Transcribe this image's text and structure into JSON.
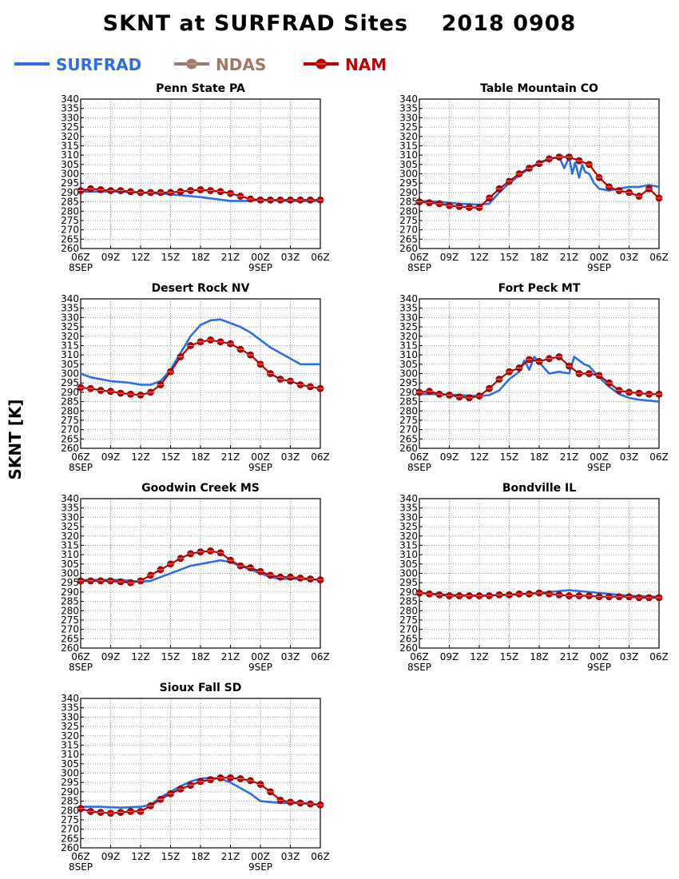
{
  "figure": {
    "title": "SKNT at SURFRAD Sites    2018 0908",
    "ylabel": "SKNT [K]"
  },
  "legend": [
    {
      "name": "SURFRAD",
      "color": "#2b6fe0",
      "marker": "none"
    },
    {
      "name": "NDAS",
      "color": "#a0786a",
      "marker": "circle"
    },
    {
      "name": "NAM",
      "color": "#c00000",
      "marker": "circle"
    }
  ],
  "chart_data": [
    {
      "type": "line",
      "title": "Penn State PA",
      "x_ticks": [
        "06Z",
        "09Z",
        "12Z",
        "15Z",
        "18Z",
        "21Z",
        "00Z",
        "03Z",
        "06Z"
      ],
      "x_sublabels": [
        "8SEP",
        "9SEP"
      ],
      "y_ticks": [
        260,
        265,
        270,
        275,
        280,
        285,
        290,
        295,
        300,
        305,
        310,
        315,
        320,
        325,
        330,
        335,
        340
      ],
      "ylim": [
        260,
        340
      ],
      "xlim_hours": [
        0,
        24
      ],
      "grid": true,
      "series": [
        {
          "name": "SURFRAD",
          "x": [
            0,
            3,
            6,
            9,
            12,
            15,
            16.5,
            18,
            21,
            24
          ],
          "y": [
            290.5,
            290.5,
            290,
            289,
            287.5,
            285.5,
            285.5,
            286,
            285.5,
            285.5
          ]
        },
        {
          "name": "NAM",
          "x": [
            0,
            1,
            2,
            3,
            4,
            5,
            6,
            7,
            8,
            9,
            10,
            11,
            12,
            13,
            14,
            15,
            16,
            17,
            18,
            19,
            20,
            21,
            22,
            23,
            24
          ],
          "y": [
            291,
            292,
            291.5,
            291,
            291,
            290.5,
            290,
            290,
            290,
            290,
            290.5,
            291,
            291.5,
            291,
            290.5,
            289.5,
            288,
            286.5,
            286,
            286,
            286,
            286,
            286,
            286,
            286
          ]
        }
      ]
    },
    {
      "type": "line",
      "title": "Table Mountain CO",
      "x_ticks": [
        "06Z",
        "09Z",
        "12Z",
        "15Z",
        "18Z",
        "21Z",
        "00Z",
        "03Z",
        "06Z"
      ],
      "x_sublabels": [
        "8SEP",
        "9SEP"
      ],
      "y_ticks": [
        260,
        265,
        270,
        275,
        280,
        285,
        290,
        295,
        300,
        305,
        310,
        315,
        320,
        325,
        330,
        335,
        340
      ],
      "ylim": [
        260,
        340
      ],
      "xlim_hours": [
        0,
        24
      ],
      "grid": true,
      "series": [
        {
          "name": "SURFRAD",
          "x": [
            0,
            2,
            4,
            6,
            7,
            8,
            9,
            10,
            11,
            12,
            13,
            14,
            14.5,
            15,
            15.3,
            15.6,
            16,
            16.3,
            16.6,
            17,
            17.5,
            18,
            19,
            20,
            21,
            22,
            23,
            24
          ],
          "y": [
            285.5,
            285,
            284,
            283.5,
            284,
            290,
            295,
            299,
            303,
            306,
            308,
            309,
            303,
            309,
            300,
            306,
            298,
            305,
            301,
            300,
            295,
            292,
            291,
            292,
            293,
            293,
            294,
            293
          ]
        },
        {
          "name": "NAM",
          "x": [
            0,
            1,
            2,
            3,
            4,
            5,
            6,
            7,
            8,
            9,
            10,
            11,
            12,
            13,
            14,
            15,
            16,
            17,
            18,
            19,
            20,
            21,
            22,
            23,
            24
          ],
          "y": [
            285,
            284.5,
            284,
            283,
            282.5,
            282,
            282,
            287,
            292,
            296,
            300,
            303,
            305.5,
            308,
            309,
            309,
            307,
            305,
            298,
            293,
            291,
            290,
            288,
            292,
            287
          ]
        }
      ]
    },
    {
      "type": "line",
      "title": "Desert Rock NV",
      "x_ticks": [
        "06Z",
        "09Z",
        "12Z",
        "15Z",
        "18Z",
        "21Z",
        "00Z",
        "03Z",
        "06Z"
      ],
      "x_sublabels": [
        "8SEP",
        "9SEP"
      ],
      "y_ticks": [
        260,
        265,
        270,
        275,
        280,
        285,
        290,
        295,
        300,
        305,
        310,
        315,
        320,
        325,
        330,
        335,
        340
      ],
      "ylim": [
        260,
        340
      ],
      "xlim_hours": [
        0,
        24
      ],
      "grid": true,
      "series": [
        {
          "name": "SURFRAD",
          "x": [
            0,
            1,
            2,
            3,
            4,
            5,
            6,
            7,
            8,
            9,
            10,
            11,
            12,
            13,
            14,
            15,
            16,
            17,
            18,
            19,
            20,
            21,
            22,
            23,
            24
          ],
          "y": [
            300,
            298,
            297,
            296,
            295.5,
            295,
            294,
            294,
            296,
            302,
            311,
            320,
            326,
            328.5,
            329,
            327,
            325,
            322,
            318,
            314,
            311,
            308,
            305,
            305,
            305
          ]
        },
        {
          "name": "NAM",
          "x": [
            0,
            1,
            2,
            3,
            4,
            5,
            6,
            7,
            8,
            9,
            10,
            11,
            12,
            13,
            14,
            15,
            16,
            17,
            18,
            19,
            20,
            21,
            22,
            23,
            24
          ],
          "y": [
            292.5,
            292,
            291,
            290.5,
            289.5,
            289,
            288.5,
            290,
            294,
            301,
            309,
            315,
            317,
            318,
            317,
            316,
            313,
            310,
            305,
            300,
            297,
            296,
            294,
            293,
            292
          ]
        }
      ]
    },
    {
      "type": "line",
      "title": "Fort Peck MT",
      "x_ticks": [
        "06Z",
        "09Z",
        "12Z",
        "15Z",
        "18Z",
        "21Z",
        "00Z",
        "03Z",
        "06Z"
      ],
      "x_sublabels": [
        "8SEP",
        "9SEP"
      ],
      "y_ticks": [
        260,
        265,
        270,
        275,
        280,
        285,
        290,
        295,
        300,
        305,
        310,
        315,
        320,
        325,
        330,
        335,
        340
      ],
      "ylim": [
        260,
        340
      ],
      "xlim_hours": [
        0,
        24
      ],
      "grid": true,
      "series": [
        {
          "name": "SURFRAD",
          "x": [
            0,
            2,
            4,
            6,
            7,
            8,
            9,
            10,
            10.5,
            11,
            11.5,
            12,
            12.5,
            13,
            14,
            15,
            15.5,
            16,
            16.5,
            17,
            18,
            19,
            20,
            21,
            22,
            24
          ],
          "y": [
            289,
            289,
            288.5,
            288,
            288.5,
            291,
            297,
            301,
            307,
            302,
            309,
            306,
            303,
            300,
            301,
            300,
            309,
            307,
            305,
            304,
            298,
            293,
            289,
            287,
            286,
            285
          ]
        },
        {
          "name": "NAM",
          "x": [
            0,
            1,
            2,
            3,
            4,
            5,
            6,
            7,
            8,
            9,
            10,
            11,
            12,
            13,
            14,
            15,
            16,
            17,
            18,
            19,
            20,
            21,
            22,
            23,
            24
          ],
          "y": [
            290,
            290.5,
            289,
            288.5,
            287.5,
            287,
            288,
            292,
            297,
            301,
            303,
            307.5,
            306.5,
            308,
            309,
            304,
            300,
            300,
            299,
            295,
            291,
            290,
            289.5,
            289,
            289
          ]
        }
      ]
    },
    {
      "type": "line",
      "title": "Goodwin Creek MS",
      "x_ticks": [
        "06Z",
        "09Z",
        "12Z",
        "15Z",
        "18Z",
        "21Z",
        "00Z",
        "03Z",
        "06Z"
      ],
      "x_sublabels": [
        "8SEP",
        "9SEP"
      ],
      "y_ticks": [
        260,
        265,
        270,
        275,
        280,
        285,
        290,
        295,
        300,
        305,
        310,
        315,
        320,
        325,
        330,
        335,
        340
      ],
      "ylim": [
        260,
        340
      ],
      "xlim_hours": [
        0,
        24
      ],
      "grid": true,
      "series": [
        {
          "name": "SURFRAD",
          "x": [
            0,
            2,
            4,
            6,
            7,
            8,
            9,
            10,
            11,
            12,
            13,
            14,
            15,
            16,
            17,
            18,
            19,
            20,
            21,
            22,
            24
          ],
          "y": [
            296.5,
            296.5,
            296.5,
            295.5,
            296,
            298,
            300,
            302,
            304,
            305,
            306,
            307,
            306,
            304,
            302,
            300,
            298,
            297,
            297,
            297,
            296.5
          ]
        },
        {
          "name": "NAM",
          "x": [
            0,
            1,
            2,
            3,
            4,
            5,
            6,
            7,
            8,
            9,
            10,
            11,
            12,
            13,
            14,
            15,
            16,
            17,
            18,
            19,
            20,
            21,
            22,
            23,
            24
          ],
          "y": [
            296,
            296,
            296,
            296,
            295.5,
            295,
            296,
            299,
            302,
            305,
            308,
            310.5,
            311.5,
            312,
            311,
            307,
            304,
            303,
            301,
            299,
            298,
            298,
            297.5,
            297,
            296.5
          ]
        }
      ]
    },
    {
      "type": "line",
      "title": "Bondville IL",
      "x_ticks": [
        "06Z",
        "09Z",
        "12Z",
        "15Z",
        "18Z",
        "21Z",
        "00Z",
        "03Z",
        "06Z"
      ],
      "x_sublabels": [
        "8SEP",
        "9SEP"
      ],
      "y_ticks": [
        260,
        265,
        270,
        275,
        280,
        285,
        290,
        295,
        300,
        305,
        310,
        315,
        320,
        325,
        330,
        335,
        340
      ],
      "ylim": [
        260,
        340
      ],
      "xlim_hours": [
        0,
        24
      ],
      "grid": true,
      "series": [
        {
          "name": "SURFRAD",
          "x": [
            0,
            3,
            6,
            9,
            12,
            15,
            18,
            21,
            24
          ],
          "y": [
            289.5,
            288.5,
            288,
            288.5,
            289.5,
            291,
            289.5,
            288,
            287.5
          ]
        },
        {
          "name": "NAM",
          "x": [
            0,
            1,
            2,
            3,
            4,
            5,
            6,
            7,
            8,
            9,
            10,
            11,
            12,
            13,
            14,
            15,
            16,
            17,
            18,
            19,
            20,
            21,
            22,
            23,
            24
          ],
          "y": [
            289.5,
            289,
            288.5,
            288,
            288,
            288,
            288,
            288,
            288.5,
            288.5,
            289,
            289,
            289.5,
            289,
            288.5,
            288,
            288,
            288,
            287.5,
            287.5,
            287.5,
            287.5,
            287,
            287,
            287
          ]
        }
      ]
    },
    {
      "type": "line",
      "title": "Sioux Fall SD",
      "x_ticks": [
        "06Z",
        "09Z",
        "12Z",
        "15Z",
        "18Z",
        "21Z",
        "00Z",
        "03Z",
        "06Z"
      ],
      "x_sublabels": [
        "8SEP",
        "9SEP"
      ],
      "y_ticks": [
        260,
        265,
        270,
        275,
        280,
        285,
        290,
        295,
        300,
        305,
        310,
        315,
        320,
        325,
        330,
        335,
        340
      ],
      "ylim": [
        260,
        340
      ],
      "xlim_hours": [
        0,
        24
      ],
      "grid": true,
      "series": [
        {
          "name": "SURFRAD",
          "x": [
            0,
            2,
            4,
            6,
            7,
            8,
            9,
            10,
            11,
            12,
            13,
            14,
            15,
            16,
            17,
            18,
            19,
            20,
            22,
            24
          ],
          "y": [
            282,
            282,
            281.5,
            282,
            283,
            287,
            290,
            293,
            295.5,
            297,
            297.5,
            297,
            295,
            292,
            289,
            285,
            284.5,
            284,
            284,
            283
          ]
        },
        {
          "name": "NAM",
          "x": [
            0,
            1,
            2,
            3,
            4,
            5,
            6,
            7,
            8,
            9,
            10,
            11,
            12,
            13,
            14,
            15,
            16,
            17,
            18,
            19,
            20,
            21,
            22,
            23,
            24
          ],
          "y": [
            281,
            279.5,
            279,
            278.5,
            279,
            279.5,
            279.5,
            282.5,
            286,
            289,
            291.5,
            293.5,
            295.5,
            296.5,
            297.5,
            297.5,
            297,
            296,
            294,
            290,
            285.5,
            284.5,
            284,
            283.5,
            283
          ]
        }
      ]
    }
  ]
}
